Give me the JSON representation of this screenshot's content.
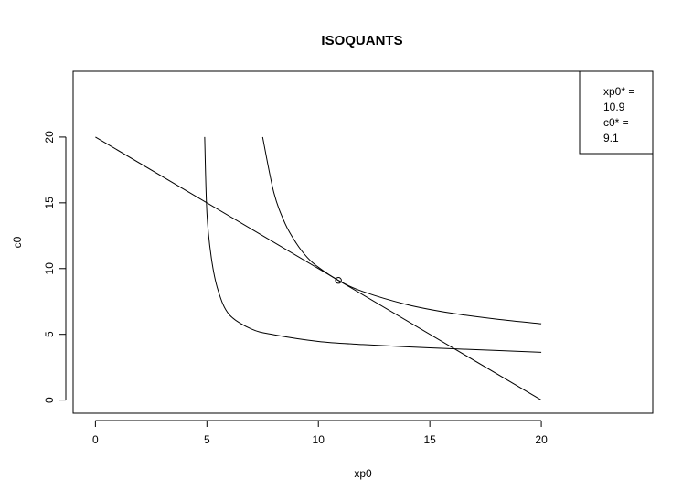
{
  "chart_data": {
    "type": "line",
    "title": "ISOQUANTS",
    "xlabel": "xp0",
    "ylabel": "c0",
    "xlim": [
      -1,
      25
    ],
    "ylim": [
      -1,
      25
    ],
    "x_ticks": [
      0,
      5,
      10,
      15,
      20
    ],
    "y_ticks": [
      0,
      5,
      10,
      15,
      20
    ],
    "x_tick_labels": [
      "0",
      "5",
      "10",
      "15",
      "20"
    ],
    "y_tick_labels": [
      "0",
      "5",
      "10",
      "15",
      "20"
    ],
    "grid": false,
    "series": [
      {
        "kind": "budget-line",
        "x": [
          0,
          20
        ],
        "y": [
          20,
          0
        ]
      },
      {
        "kind": "isoquant",
        "x": [
          4.9,
          5.0,
          5.2,
          5.5,
          6.0,
          7.0,
          8.0,
          10.0,
          12.0,
          15.0,
          18.0,
          20.0
        ],
        "y": [
          20.0,
          14.2,
          10.8,
          8.35,
          6.5,
          5.4,
          4.97,
          4.46,
          4.22,
          3.97,
          3.77,
          3.63
        ]
      },
      {
        "kind": "isoquant",
        "x": [
          7.5,
          8.0,
          8.5,
          9.0,
          9.5,
          10.0,
          10.9,
          12.0,
          14.0,
          16.0,
          18.0,
          20.0
        ],
        "y": [
          20.0,
          15.8,
          13.45,
          11.95,
          10.85,
          10.1,
          9.1,
          8.25,
          7.25,
          6.6,
          6.15,
          5.8
        ]
      }
    ],
    "optimum": {
      "x": 10.9,
      "y": 9.1
    },
    "legend": {
      "position": "top-right",
      "lines": [
        "xp0* =",
        "10.9",
        "c0* =",
        "9.1"
      ]
    }
  }
}
